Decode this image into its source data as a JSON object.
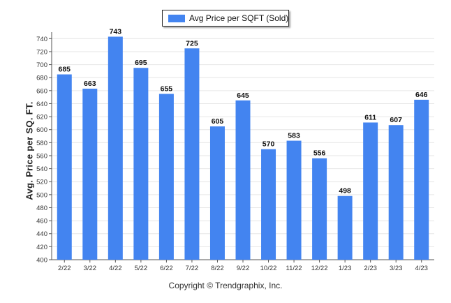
{
  "legend": {
    "label": "Avg Price per SQFT (Sold)"
  },
  "footer": {
    "copyright": "Copyright © Trendgraphix, Inc."
  },
  "colors": {
    "bar": "#4384f0",
    "grid": "#e6e6e6",
    "axis": "#555555"
  },
  "chart_data": {
    "type": "bar",
    "categories": [
      "2/22",
      "3/22",
      "4/22",
      "5/22",
      "6/22",
      "7/22",
      "8/22",
      "9/22",
      "10/22",
      "11/22",
      "12/22",
      "1/23",
      "2/23",
      "3/23",
      "4/23"
    ],
    "series": [
      {
        "name": "Avg Price per SQFT (Sold)",
        "values": [
          685,
          663,
          743,
          695,
          655,
          725,
          605,
          645,
          570,
          583,
          556,
          498,
          611,
          607,
          646
        ]
      }
    ],
    "ylabel": "Avg. Price per SQ. FT.",
    "xlabel": "",
    "ylim": [
      400,
      750
    ],
    "yticks": [
      400,
      420,
      440,
      460,
      480,
      500,
      520,
      540,
      560,
      580,
      600,
      620,
      640,
      660,
      680,
      700,
      720,
      740
    ],
    "grid": true,
    "legend_position": "top-center"
  }
}
